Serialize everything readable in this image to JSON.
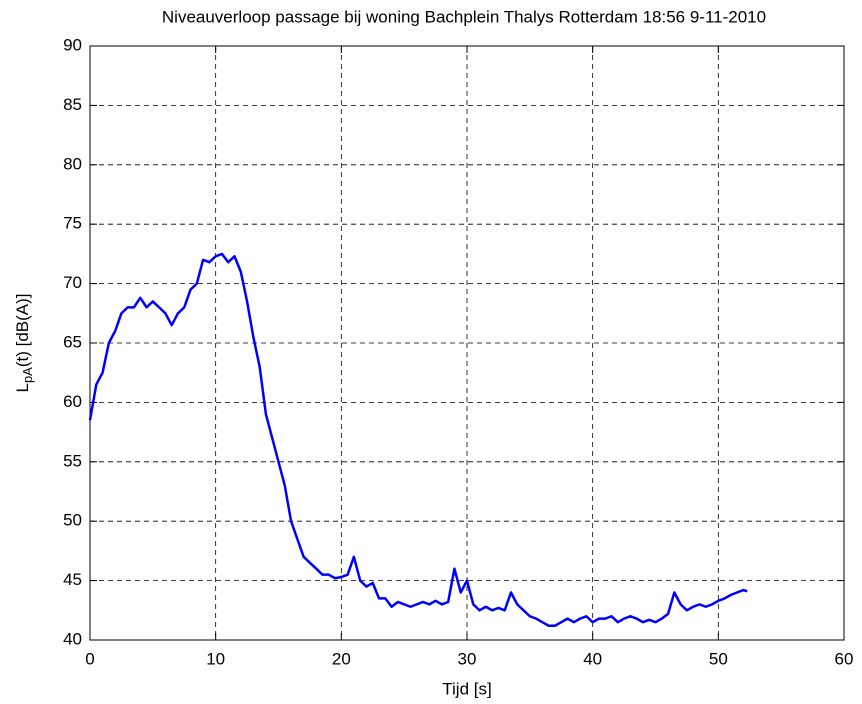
{
  "chart_data": {
    "type": "line",
    "title": "Niveauverloop passage bij woning Bachplein Thalys Rotterdam 18:56 9-11-2010",
    "xlabel": "Tijd [s]",
    "ylabel": {
      "main": "L",
      "subscript": "pA",
      "rest": "(t) [dB(A)]"
    },
    "xlim": [
      0,
      60
    ],
    "xticks": [
      0,
      10,
      20,
      30,
      40,
      50,
      60
    ],
    "ylim": [
      40,
      90
    ],
    "yticks": [
      40,
      45,
      50,
      55,
      60,
      65,
      70,
      75,
      80,
      85,
      90
    ],
    "grid": true,
    "series": [
      {
        "color": "#0000ff",
        "x": [
          0,
          0.5,
          1,
          1.5,
          2,
          2.5,
          3,
          3.5,
          4,
          4.5,
          5,
          5.5,
          6,
          6.5,
          7,
          7.5,
          8,
          8.5,
          9,
          9.5,
          10,
          10.5,
          11,
          11.5,
          12,
          12.5,
          13,
          13.5,
          14,
          14.5,
          15,
          15.5,
          16,
          16.5,
          17,
          17.5,
          18,
          18.5,
          19,
          19.5,
          20,
          20.5,
          21,
          21.5,
          22,
          22.5,
          23,
          23.5,
          24,
          24.5,
          25,
          25.5,
          26,
          26.5,
          27,
          27.5,
          28,
          28.5,
          29,
          29.5,
          30,
          30.5,
          31,
          31.5,
          32,
          32.5,
          33,
          33.5,
          34,
          34.5,
          35,
          35.5,
          36,
          36.5,
          37,
          37.5,
          38,
          38.5,
          39,
          39.5,
          40,
          40.5,
          41,
          41.5,
          42,
          42.5,
          43,
          43.5,
          44,
          44.5,
          45,
          45.5,
          46,
          46.5,
          47,
          47.5,
          48,
          48.5,
          49,
          49.5,
          50,
          50.5,
          51,
          51.5,
          52,
          52.3
        ],
        "values": [
          58.5,
          61.5,
          62.5,
          65,
          66,
          67.5,
          68,
          68,
          68.8,
          68,
          68.5,
          68,
          67.5,
          66.5,
          67.5,
          68,
          69.5,
          70,
          72,
          71.8,
          72.3,
          72.5,
          71.8,
          72.3,
          71,
          68.5,
          65.5,
          63,
          59,
          57,
          55,
          53,
          50,
          48.5,
          47,
          46.5,
          46,
          45.5,
          45.5,
          45.2,
          45.3,
          45.5,
          47,
          45,
          44.5,
          44.8,
          43.5,
          43.5,
          42.8,
          43.2,
          43,
          42.8,
          43,
          43.2,
          43,
          43.3,
          43,
          43.2,
          46,
          44,
          45,
          43,
          42.5,
          42.8,
          42.5,
          42.7,
          42.5,
          44,
          43,
          42.5,
          42,
          41.8,
          41.5,
          41.2,
          41.2,
          41.5,
          41.8,
          41.5,
          41.8,
          42,
          41.5,
          41.8,
          41.8,
          42,
          41.5,
          41.8,
          42,
          41.8,
          41.5,
          41.7,
          41.5,
          41.8,
          42.2,
          44,
          43,
          42.5,
          42.8,
          43,
          42.8,
          43,
          43.3,
          43.5,
          43.8,
          44,
          44.2,
          44.1
        ]
      }
    ]
  }
}
